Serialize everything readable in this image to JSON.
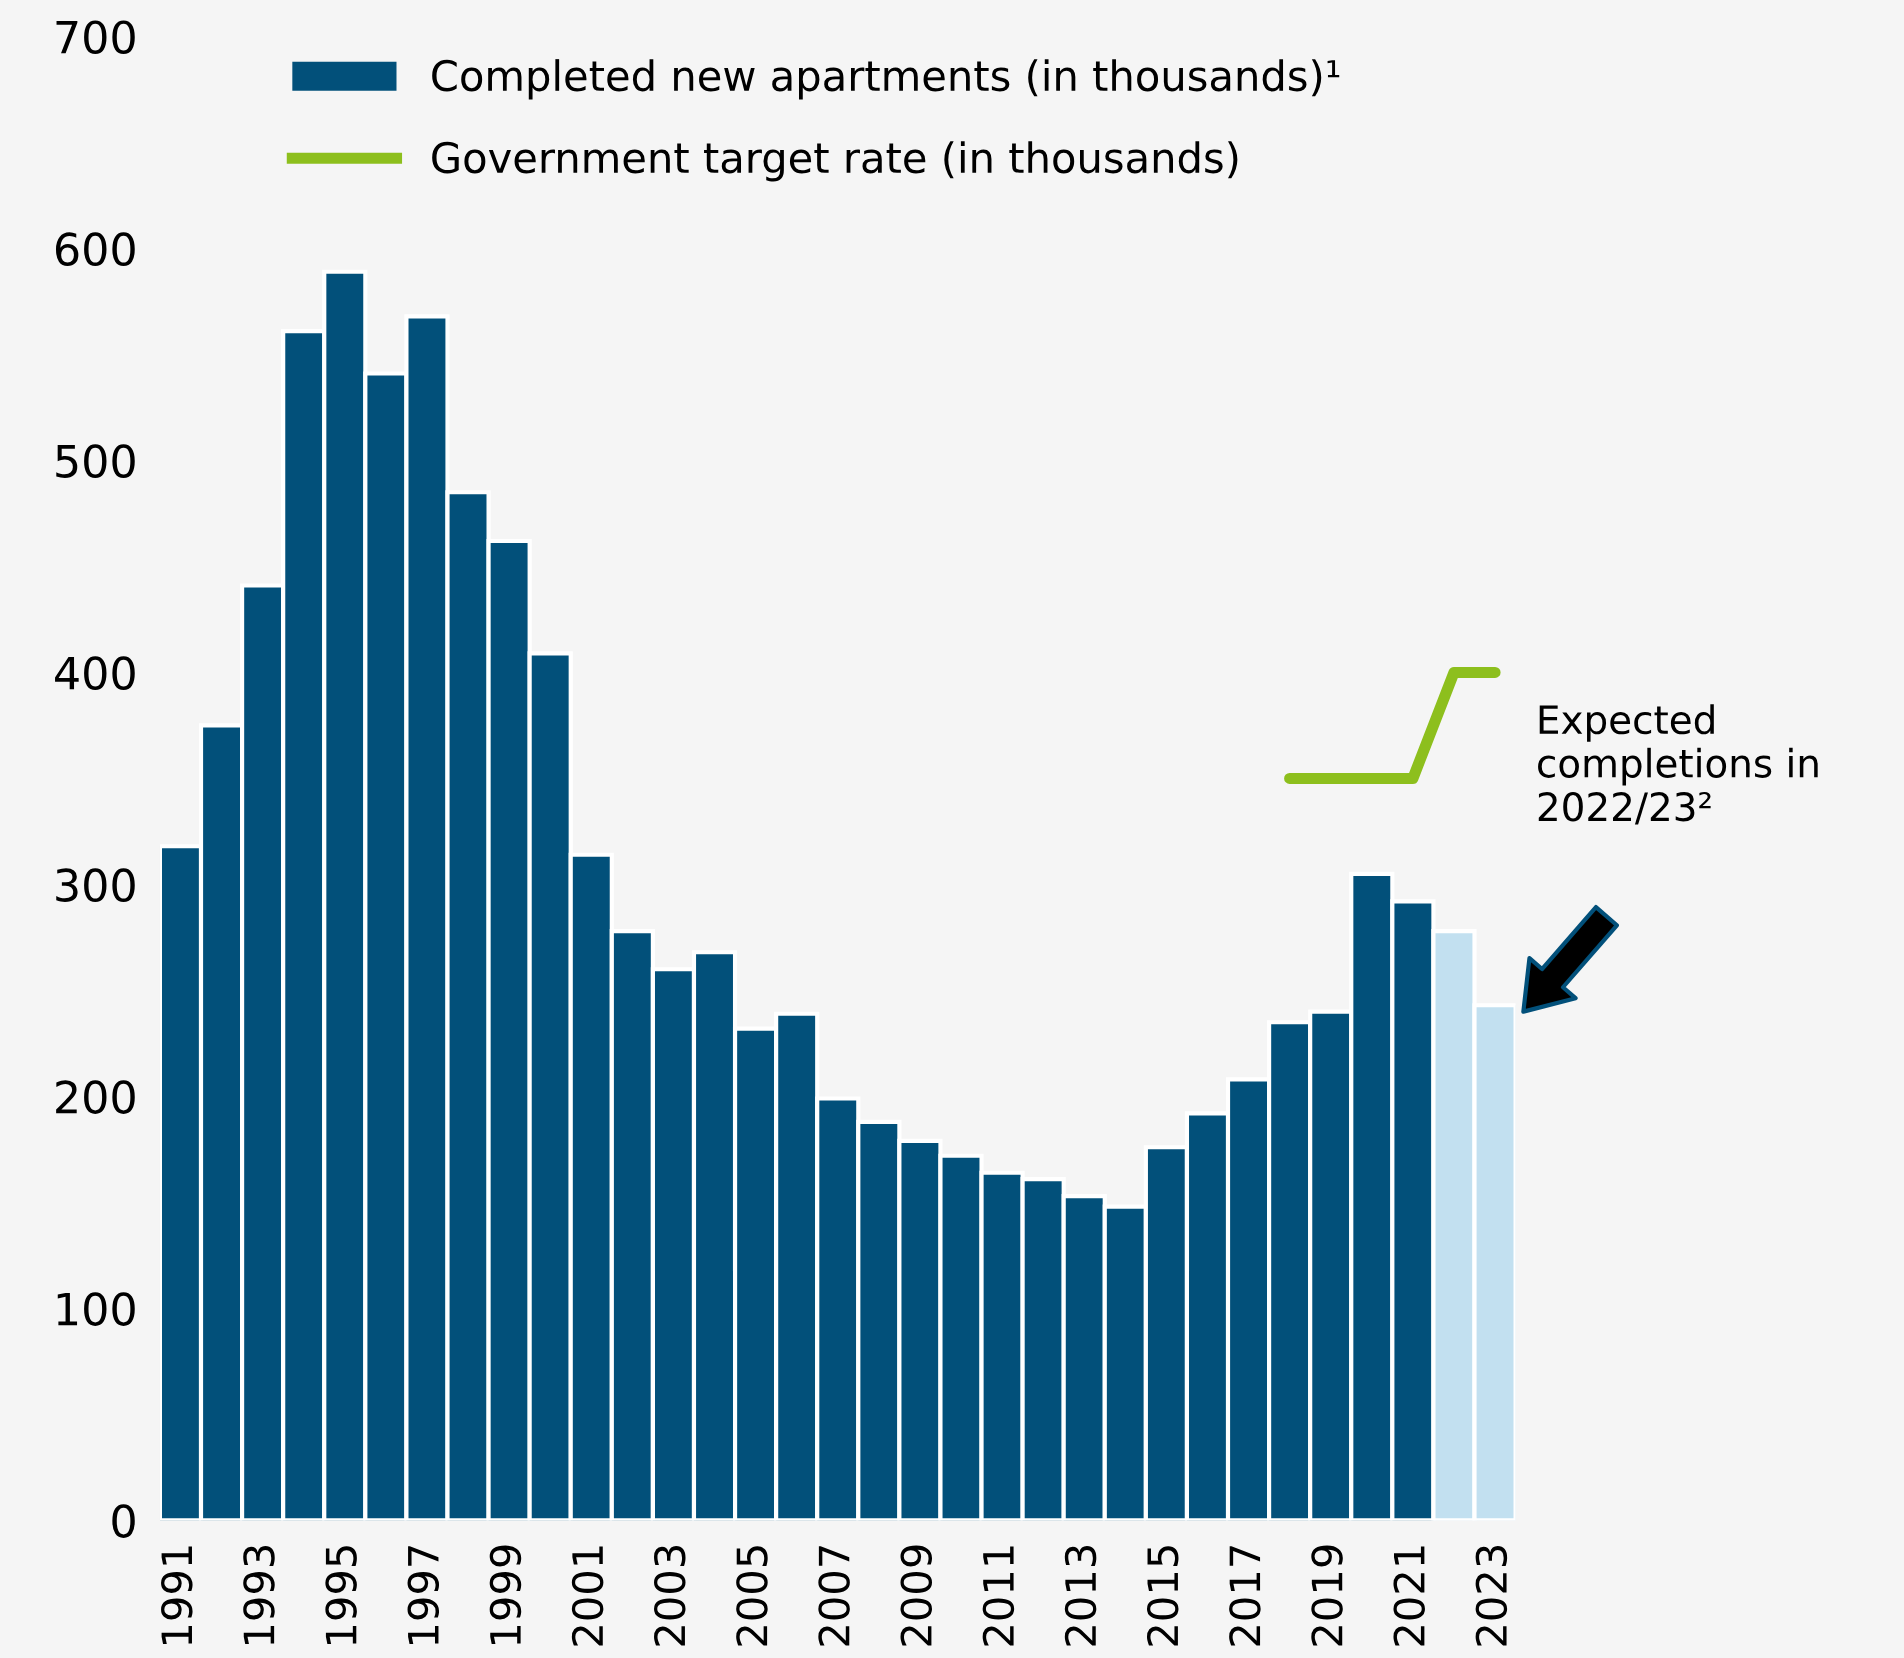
{
  "chart_data": {
    "type": "bar",
    "categories": [
      "1991",
      null,
      "1993",
      null,
      "1995",
      null,
      "1997",
      null,
      "1999",
      null,
      "2001",
      null,
      "2003",
      null,
      "2005",
      null,
      "2007",
      null,
      "2009",
      null,
      "2011",
      null,
      "2013",
      null,
      "2015",
      null,
      "2017",
      null,
      "2019",
      null,
      "2021",
      null,
      "2023"
    ],
    "series": [
      {
        "name": "Completed new apartments (in thousands)¹",
        "color": "#02507a",
        "colors": [
          "#02507a",
          "#02507a",
          "#02507a",
          "#02507a",
          "#02507a",
          "#02507a",
          "#02507a",
          "#02507a",
          "#02507a",
          "#02507a",
          "#02507a",
          "#02507a",
          "#02507a",
          "#02507a",
          "#02507a",
          "#02507a",
          "#02507a",
          "#02507a",
          "#02507a",
          "#02507a",
          "#02507a",
          "#02507a",
          "#02507a",
          "#02507a",
          "#02507a",
          "#02507a",
          "#02507a",
          "#02507a",
          "#02507a",
          "#02507a",
          "#02507a",
          "#c2e0f0",
          "#c2e0f0"
        ],
        "values": [
          318,
          375,
          441,
          561,
          589,
          541,
          568,
          485,
          462,
          409,
          314,
          278,
          260,
          268,
          232,
          239,
          199,
          188,
          179,
          172,
          164,
          161,
          153,
          148,
          176,
          192,
          208,
          235,
          240,
          305,
          292,
          278,
          243
        ]
      },
      {
        "name": "Government target rate (in thousands)",
        "type": "line",
        "color": "#8dbf1d",
        "values": [
          null,
          null,
          null,
          null,
          null,
          null,
          null,
          null,
          null,
          null,
          null,
          null,
          null,
          null,
          null,
          null,
          null,
          null,
          null,
          null,
          null,
          null,
          null,
          null,
          null,
          null,
          null,
          350,
          350,
          350,
          350,
          400,
          400
        ]
      }
    ],
    "ylim": [
      0,
      700
    ],
    "yticks": [
      0,
      100,
      200,
      300,
      400,
      500,
      600,
      700
    ],
    "legend": "top left",
    "grid": false,
    "marker": "none",
    "line_style": "solid",
    "annotations": [
      "Expected completions in 2022/23²"
    ]
  }
}
